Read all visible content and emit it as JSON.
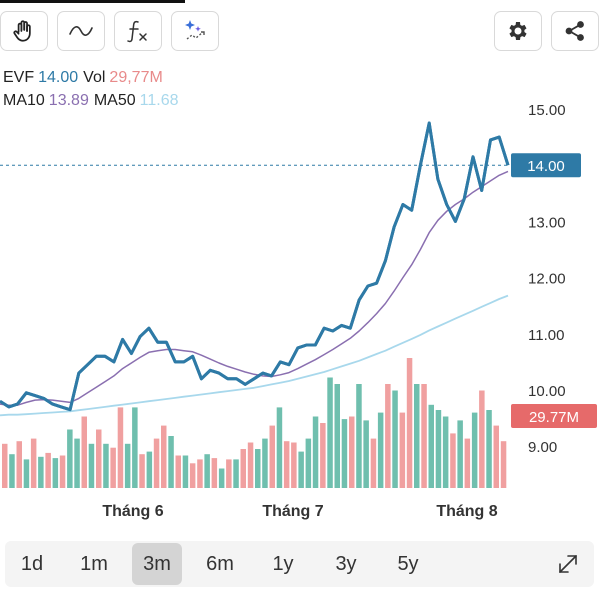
{
  "toolbar": {
    "buttons": [
      {
        "name": "hand-pan-icon"
      },
      {
        "name": "line-tool-icon"
      },
      {
        "name": "function-icon"
      },
      {
        "name": "ai-sparkle-icon"
      }
    ],
    "right_buttons": [
      {
        "name": "gear-icon"
      },
      {
        "name": "share-icon"
      }
    ]
  },
  "legend": {
    "symbol": "EVF",
    "price": "14.00",
    "vol_label": "Vol",
    "vol_value": "29,77M",
    "ma10_label": "MA10",
    "ma10_value": "13.89",
    "ma50_label": "MA50",
    "ma50_value": "11.68"
  },
  "colors": {
    "price": "#2e7aa6",
    "ma10": "#8a6fb0",
    "ma50": "#a8d8ec",
    "vol_up": "#6fbfae",
    "vol_down": "#f0a0a0",
    "vol_tag": "#e66a6a",
    "price_tag": "#2e7aa6"
  },
  "chart_data": {
    "type": "line",
    "x_labels": [
      "Tháng 6",
      "Tháng 7",
      "Tháng 8"
    ],
    "y_ticks": [
      "15.00",
      "14.00",
      "13.00",
      "12.00",
      "11.00",
      "10.00",
      "9.00"
    ],
    "ylim": [
      8.25,
      15.4
    ],
    "current_price_tag": "14.00",
    "current_volume_tag": "29.77M",
    "series": [
      {
        "name": "EVF",
        "values": [
          9.8,
          9.7,
          9.75,
          9.95,
          9.9,
          9.85,
          9.75,
          9.7,
          9.65,
          10.3,
          10.45,
          10.6,
          10.6,
          10.5,
          10.9,
          10.65,
          10.95,
          11.1,
          10.85,
          10.85,
          10.5,
          10.5,
          10.6,
          10.2,
          10.35,
          10.3,
          10.2,
          10.2,
          10.1,
          10.2,
          10.3,
          10.25,
          10.5,
          10.45,
          10.75,
          10.8,
          10.8,
          11.1,
          11.05,
          11.15,
          11.1,
          11.6,
          11.85,
          11.9,
          12.3,
          12.9,
          13.3,
          13.2,
          14.0,
          14.75,
          13.75,
          13.3,
          13.0,
          13.4,
          14.15,
          13.55,
          14.45,
          14.5,
          14.0
        ]
      },
      {
        "name": "MA10",
        "values": [
          9.75,
          9.73,
          9.73,
          9.78,
          9.82,
          9.83,
          9.82,
          9.8,
          9.78,
          9.85,
          9.95,
          10.05,
          10.15,
          10.25,
          10.38,
          10.48,
          10.58,
          10.67,
          10.7,
          10.72,
          10.72,
          10.7,
          10.68,
          10.62,
          10.55,
          10.48,
          10.42,
          10.37,
          10.32,
          10.28,
          10.25,
          10.24,
          10.27,
          10.31,
          10.38,
          10.46,
          10.54,
          10.63,
          10.72,
          10.82,
          10.92,
          11.05,
          11.2,
          11.36,
          11.54,
          11.76,
          12.0,
          12.23,
          12.5,
          12.8,
          13.02,
          13.18,
          13.3,
          13.4,
          13.52,
          13.62,
          13.72,
          13.82,
          13.89
        ]
      },
      {
        "name": "MA50",
        "values": [
          9.55,
          9.56,
          9.56,
          9.57,
          9.58,
          9.59,
          9.6,
          9.61,
          9.62,
          9.64,
          9.66,
          9.68,
          9.7,
          9.72,
          9.74,
          9.76,
          9.78,
          9.8,
          9.82,
          9.84,
          9.86,
          9.88,
          9.9,
          9.92,
          9.94,
          9.96,
          9.98,
          10.0,
          10.02,
          10.04,
          10.07,
          10.1,
          10.13,
          10.16,
          10.2,
          10.24,
          10.28,
          10.32,
          10.37,
          10.42,
          10.47,
          10.52,
          10.58,
          10.64,
          10.7,
          10.77,
          10.84,
          10.91,
          10.98,
          11.06,
          11.13,
          11.2,
          11.27,
          11.34,
          11.41,
          11.48,
          11.55,
          11.62,
          11.68
        ]
      }
    ],
    "volume": {
      "values": [
        0.34,
        0.26,
        0.36,
        0.22,
        0.38,
        0.24,
        0.27,
        0.23,
        0.25,
        0.45,
        0.38,
        0.55,
        0.34,
        0.45,
        0.34,
        0.31,
        0.62,
        0.34,
        0.62,
        0.26,
        0.28,
        0.38,
        0.48,
        0.4,
        0.25,
        0.25,
        0.19,
        0.22,
        0.26,
        0.23,
        0.15,
        0.22,
        0.22,
        0.3,
        0.35,
        0.3,
        0.38,
        0.48,
        0.62,
        0.36,
        0.35,
        0.28,
        0.38,
        0.55,
        0.5,
        0.85,
        0.8,
        0.53,
        0.55,
        0.8,
        0.52,
        0.38,
        0.58,
        0.8,
        0.75,
        0.58,
        1.0,
        0.8,
        0.8,
        0.64,
        0.6,
        0.55,
        0.42,
        0.52,
        0.38,
        0.58,
        0.75,
        0.6,
        0.48,
        0.36
      ],
      "up": [
        0,
        1,
        0,
        1,
        0,
        1,
        0,
        1,
        0,
        1,
        1,
        0,
        1,
        0,
        1,
        0,
        0,
        1,
        1,
        0,
        1,
        0,
        0,
        1,
        0,
        1,
        0,
        0,
        1,
        0,
        1,
        0,
        1,
        0,
        0,
        1,
        1,
        0,
        1,
        0,
        0,
        1,
        1,
        1,
        0,
        1,
        1,
        1,
        0,
        1,
        1,
        0,
        1,
        0,
        1,
        0,
        0,
        1,
        0,
        1,
        1,
        1,
        0,
        1,
        0,
        1,
        0,
        1,
        0,
        0
      ]
    }
  },
  "range_selector": {
    "options": [
      "1d",
      "1m",
      "3m",
      "6m",
      "1y",
      "3y",
      "5y"
    ],
    "selected": "3m"
  },
  "expand": {
    "name": "expand-icon"
  }
}
